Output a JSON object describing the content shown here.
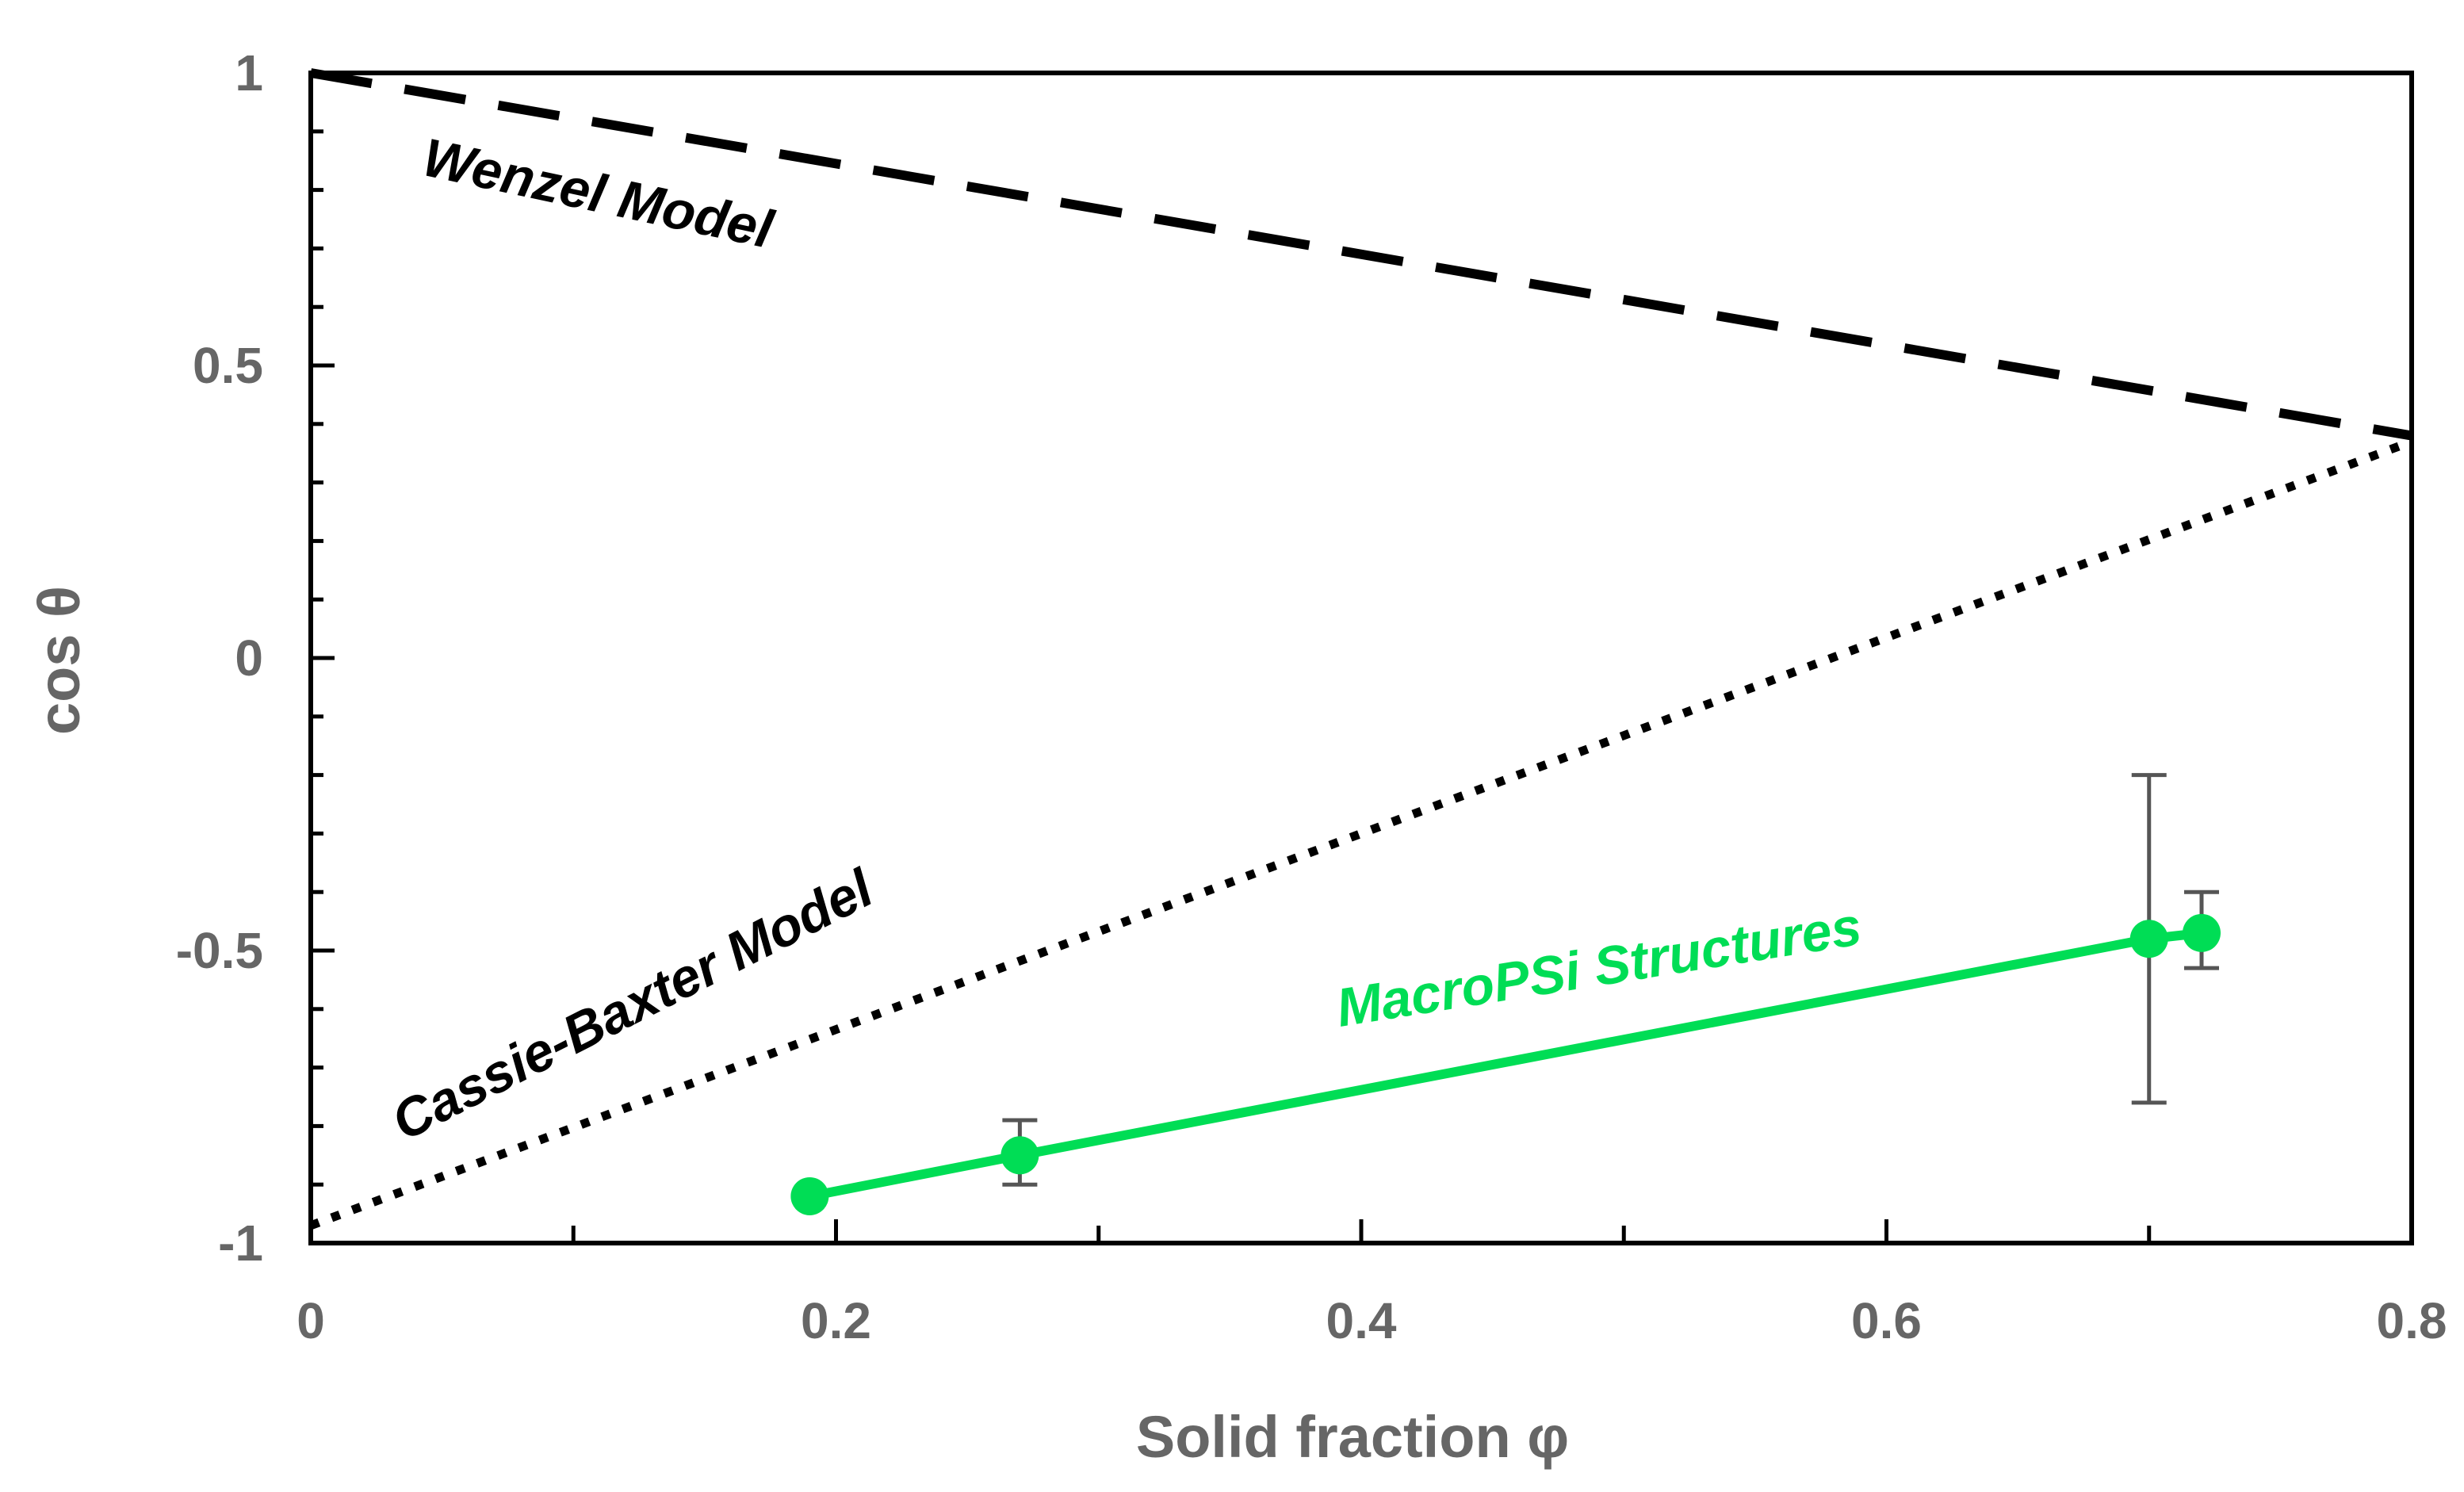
{
  "chart_data": {
    "type": "line",
    "xlabel": "Solid fraction φ",
    "ylabel": "cos θ",
    "xlim": [
      0,
      0.8
    ],
    "ylim": [
      -1,
      1
    ],
    "x_ticks": [
      "0",
      "0.2",
      "0.4",
      "0.6",
      "0.8"
    ],
    "y_ticks": [
      "1",
      "0.5",
      "0",
      "-0.5",
      "-1"
    ],
    "x_tick_values": [
      0,
      0.2,
      0.4,
      0.6,
      0.8
    ],
    "y_tick_values": [
      1,
      0.5,
      0,
      -0.5,
      -1
    ],
    "grid": false,
    "series": [
      {
        "name": "Wenzel Model",
        "style": "dashed",
        "color": "#000000",
        "x": [
          0,
          0.8
        ],
        "y": [
          1,
          0.38
        ]
      },
      {
        "name": "Cassie-Baxter Model",
        "style": "dotted",
        "color": "#000000",
        "x": [
          0,
          0.8
        ],
        "y": [
          -0.97,
          0.37
        ]
      },
      {
        "name": "MacroPSi Structures",
        "style": "solid-markers",
        "color": "#00dd55",
        "x": [
          0.19,
          0.27,
          0.7,
          0.72
        ],
        "y": [
          -0.92,
          -0.85,
          -0.48,
          -0.47
        ],
        "yerr_low": [
          -0.92,
          -0.9,
          -0.76,
          -0.53
        ],
        "yerr_high": [
          -0.92,
          -0.79,
          -0.2,
          -0.4
        ]
      }
    ],
    "annotations": [
      {
        "text": "Wenzel Model",
        "color": "#000000"
      },
      {
        "text": "Cassie-Baxter  Model",
        "color": "#000000"
      },
      {
        "text": "MacroPSi Structures",
        "color": "#00dd55"
      }
    ]
  }
}
